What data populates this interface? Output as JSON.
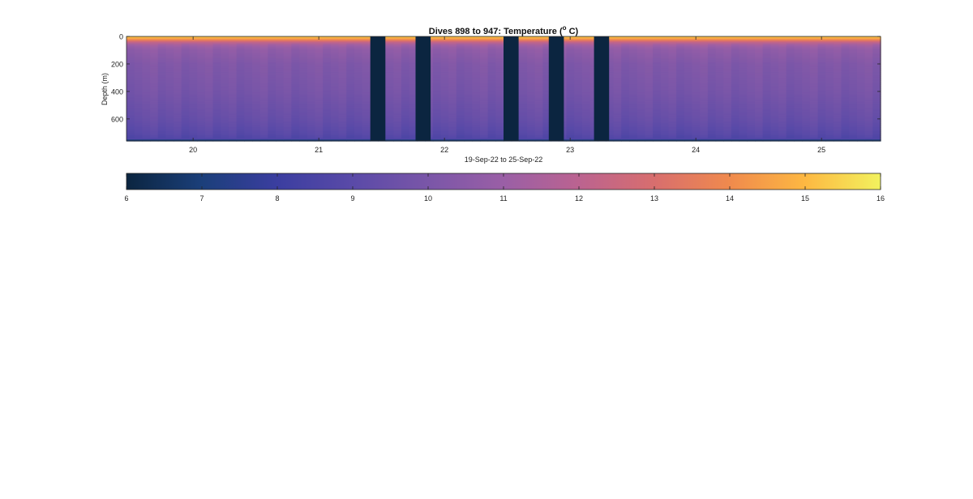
{
  "chart_data": {
    "type": "heatmap",
    "title": "Dives 898 to 947: Temperature (",
    "title_superscript": "o",
    "title_suffix": " C)",
    "xlabel": "19-Sep-22 to 25-Sep-22",
    "ylabel": "Depth (m)",
    "x_ticks": [
      20,
      21,
      22,
      23,
      24,
      25
    ],
    "y_ticks": [
      0,
      200,
      400,
      600
    ],
    "xlim": [
      19.47,
      25.47
    ],
    "ylim": [
      0,
      760
    ],
    "y_reversed": true,
    "grid": false,
    "colormap": "plasma-like",
    "colormap_stops": [
      "#0b2540",
      "#1b3f7a",
      "#3b3ea0",
      "#5a4aa8",
      "#7a56a8",
      "#9a5fa6",
      "#bb6390",
      "#d86e6e",
      "#f08a4d",
      "#fdb842",
      "#f2f25e"
    ],
    "nodata_color": "#0b2540",
    "gaps": [
      [
        21.41,
        21.53
      ],
      [
        21.77,
        21.89
      ],
      [
        22.47,
        22.59
      ],
      [
        22.83,
        22.95
      ],
      [
        23.19,
        23.31
      ]
    ],
    "profile": {
      "depths": [
        0,
        10,
        25,
        40,
        60,
        90,
        200,
        400,
        600,
        700,
        745,
        760
      ],
      "temperatures": [
        15.3,
        14.9,
        13.8,
        12.4,
        11.3,
        10.7,
        10.2,
        9.9,
        9.4,
        9.0,
        8.7,
        6.1
      ]
    },
    "colorbar": {
      "range": [
        6,
        16
      ],
      "ticks": [
        6,
        7,
        8,
        9,
        10,
        11,
        12,
        13,
        14,
        15,
        16
      ]
    }
  }
}
